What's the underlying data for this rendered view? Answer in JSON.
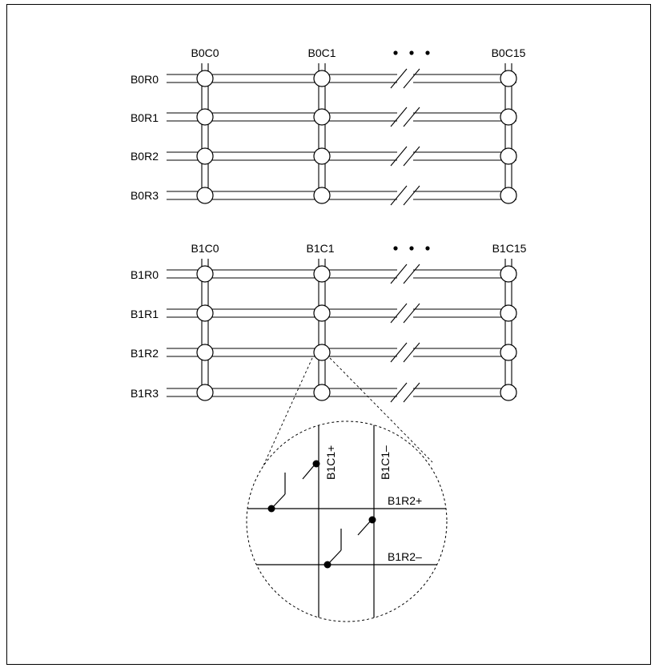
{
  "bank0": {
    "columns": [
      "B0C0",
      "B0C1",
      "B0C15"
    ],
    "rows": [
      "B0R0",
      "B0R1",
      "B0R2",
      "B0R3"
    ]
  },
  "bank1": {
    "columns": [
      "B1C0",
      "B1C1",
      "B1C15"
    ],
    "rows": [
      "B1R0",
      "B1R1",
      "B1R2",
      "B1R3"
    ]
  },
  "detail": {
    "col_plus": "B1C1+",
    "col_minus": "B1C1–",
    "row_plus": "B1R2+",
    "row_minus": "B1R2–"
  },
  "colors": {
    "stroke": "#000000",
    "background": "#ffffff"
  }
}
